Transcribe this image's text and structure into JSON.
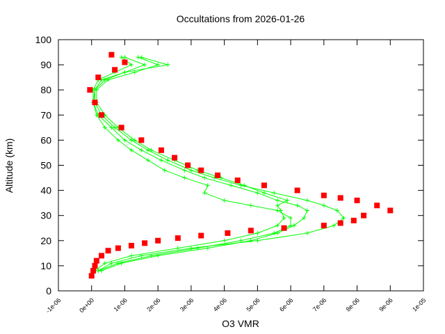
{
  "chart_data": {
    "type": "line",
    "title": "Occultations from 2026-01-26",
    "x_label": "O3 VMR",
    "y_label": "Altitude (km)",
    "xlim": [
      -1e-06,
      1e-05
    ],
    "xticks": [
      {
        "value": -1e-06,
        "label": "-1e-06"
      },
      {
        "value": 0,
        "label": "0e+00"
      },
      {
        "value": 1e-06,
        "label": "1e-06"
      },
      {
        "value": 2e-06,
        "label": "2e-06"
      },
      {
        "value": 3e-06,
        "label": "3e-06"
      },
      {
        "value": 4e-06,
        "label": "4e-06"
      },
      {
        "value": 5e-06,
        "label": "5e-06"
      },
      {
        "value": 6e-06,
        "label": "6e-06"
      },
      {
        "value": 7e-06,
        "label": "7e-06"
      },
      {
        "value": 8e-06,
        "label": "8e-06"
      },
      {
        "value": 9e-06,
        "label": "9e-06"
      },
      {
        "value": 1e-05,
        "label": "1e-05"
      }
    ],
    "ylim": [
      0,
      100
    ],
    "yticks": [
      0,
      10,
      20,
      30,
      40,
      50,
      60,
      70,
      80,
      90,
      100
    ],
    "series": [
      {
        "color": "#00ff00",
        "marker": "plus",
        "x": [
          2e-07,
          8e-07,
          1.8e-06,
          3.2e-06,
          4.5e-06,
          5.5e-06,
          6e-06,
          6e-06,
          5.6e-06,
          4.8e-06,
          4e-06,
          3.4e-06,
          3.5e-06,
          2.8e-06,
          2.2e-06,
          1.7e-06,
          1.2e-06,
          8e-07,
          4e-07,
          1.5e-07,
          5e-08,
          1e-07,
          3e-07,
          1e-06,
          2.3e-06,
          1.5e-06
        ],
        "values": [
          8,
          11,
          14,
          17,
          20,
          23,
          26,
          29,
          32,
          34,
          36,
          39,
          42,
          45,
          48,
          52,
          56,
          60,
          65,
          70,
          75,
          80,
          84,
          87,
          90,
          93
        ]
      },
      {
        "color": "#00ff00",
        "marker": "plus",
        "x": [
          2e-07,
          6e-07,
          1.5e-06,
          3e-06,
          5e-06,
          6.5e-06,
          7.3e-06,
          7.6e-06,
          7.4e-06,
          7e-06,
          6.5e-06,
          5.5e-06,
          4.5e-06,
          3.7e-06,
          3e-06,
          2.3e-06,
          1.7e-06,
          1.2e-06,
          7e-07,
          3e-07,
          1e-07,
          1e-07,
          4e-07,
          1e-06,
          1.6e-06,
          1e-06
        ],
        "values": [
          8,
          11,
          14,
          17,
          20,
          23,
          26,
          29,
          32,
          34,
          36,
          39,
          42,
          45,
          48,
          52,
          56,
          60,
          65,
          70,
          75,
          80,
          84,
          87,
          90,
          93
        ]
      },
      {
        "color": "#00ff00",
        "marker": "plus",
        "x": [
          3e-07,
          9e-07,
          2e-06,
          3.5e-06,
          4.8e-06,
          5.6e-06,
          6.1e-06,
          6.4e-06,
          6.5e-06,
          6.2e-06,
          5.6e-06,
          5e-06,
          4.2e-06,
          3.4e-06,
          2.8e-06,
          2.1e-06,
          1.5e-06,
          1e-06,
          6e-07,
          2e-07,
          5e-08,
          5e-08,
          2e-07,
          7e-07,
          1.2e-06,
          9e-07
        ],
        "values": [
          8,
          11,
          14,
          17,
          20,
          23,
          26,
          29,
          32,
          34,
          36,
          39,
          42,
          45,
          48,
          52,
          56,
          60,
          65,
          70,
          75,
          80,
          84,
          87,
          90,
          93
        ]
      },
      {
        "color": "#00ff00",
        "marker": "plus",
        "x": [
          1e-07,
          4e-07,
          1.2e-06,
          2.6e-06,
          4e-06,
          5e-06,
          5.6e-06,
          5.8e-06,
          5.7e-06,
          5.6e-06,
          5.9e-06,
          5.2e-06,
          4.6e-06,
          3.9e-06,
          3.2e-06,
          2.5e-06,
          1.8e-06,
          1.3e-06,
          8e-07,
          4e-07,
          1.5e-07,
          1.5e-07,
          5e-07,
          1.3e-06,
          2e-06,
          1.4e-06
        ],
        "values": [
          8,
          11,
          14,
          17,
          20,
          23,
          26,
          29,
          32,
          34,
          36,
          39,
          42,
          45,
          48,
          52,
          56,
          60,
          65,
          70,
          75,
          80,
          84,
          87,
          90,
          93
        ]
      },
      {
        "color": "#ff0000",
        "marker": "square",
        "x": [
          0,
          5e-08,
          1e-07,
          1.5e-07,
          3e-07,
          5e-07,
          8e-07,
          1.2e-06,
          1.6e-06,
          2e-06,
          2.6e-06,
          3.3e-06,
          4.1e-06,
          4.8e-06,
          5.8e-06,
          7e-06,
          7.5e-06,
          7.9e-06,
          8.2e-06,
          9e-06,
          8.6e-06,
          8e-06,
          7.5e-06,
          7e-06,
          6.2e-06,
          5.2e-06,
          4.4e-06,
          3.8e-06,
          3.3e-06,
          2.9e-06,
          2.5e-06,
          2.1e-06,
          1.5e-06,
          9e-07,
          3e-07,
          1e-07,
          -5e-08,
          2e-07,
          7e-07,
          1e-06,
          6e-07
        ],
        "values": [
          6,
          8,
          10,
          12,
          14,
          16,
          17,
          18,
          19,
          20,
          21,
          22,
          23,
          24,
          25,
          26,
          27,
          28,
          30,
          32,
          34,
          36,
          37,
          38,
          40,
          42,
          44,
          46,
          48,
          50,
          53,
          56,
          60,
          65,
          70,
          75,
          80,
          85,
          88,
          91,
          94
        ]
      }
    ]
  }
}
